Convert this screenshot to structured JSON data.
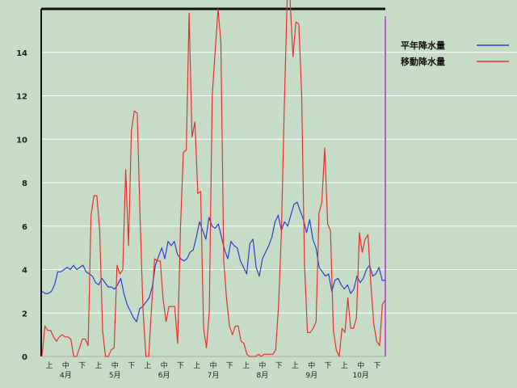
{
  "chart_data": {
    "type": "line",
    "title": "",
    "xlabel": "",
    "ylabel": "",
    "ylim": [
      0,
      16
    ],
    "yticks": [
      0,
      2,
      4,
      6,
      8,
      10,
      12,
      14
    ],
    "grid": true,
    "legend_position": "top-right",
    "x_period_labels": [
      "上",
      "中",
      "下",
      "上",
      "中",
      "下",
      "上",
      "中",
      "下",
      "上",
      "中",
      "下",
      "上",
      "中",
      "下",
      "上",
      "中",
      "下",
      "上",
      "中",
      "下"
    ],
    "x_month_labels": [
      "4月",
      "5月",
      "6月",
      "7月",
      "8月",
      "9月",
      "10月"
    ],
    "series": [
      {
        "name": "平年降水量",
        "color": "#2f3fd0",
        "y": [
          3.0,
          2.9,
          2.9,
          3.0,
          3.3,
          3.9,
          3.9,
          4.0,
          4.1,
          4.0,
          4.2,
          4.0,
          4.1,
          4.2,
          3.9,
          3.8,
          3.7,
          3.4,
          3.3,
          3.6,
          3.4,
          3.2,
          3.2,
          3.1,
          3.3,
          3.6,
          2.9,
          2.4,
          2.1,
          1.8,
          1.6,
          2.2,
          2.3,
          2.5,
          2.7,
          3.2,
          4.2,
          4.6,
          5.0,
          4.5,
          5.3,
          5.1,
          5.3,
          4.7,
          4.5,
          4.4,
          4.5,
          4.8,
          4.9,
          5.5,
          6.2,
          5.8,
          5.4,
          6.4,
          6.0,
          5.9,
          6.1,
          5.5,
          4.9,
          4.5,
          5.3,
          5.1,
          5.0,
          4.4,
          4.1,
          3.8,
          5.2,
          5.4,
          4.1,
          3.7,
          4.5,
          4.8,
          5.1,
          5.5,
          6.2,
          6.5,
          5.8,
          6.2,
          6.0,
          6.5,
          7.0,
          7.1,
          6.7,
          6.3,
          5.7,
          6.3,
          5.4,
          5.0,
          4.1,
          3.9,
          3.7,
          3.8,
          3.0,
          3.5,
          3.6,
          3.3,
          3.1,
          3.3,
          2.9,
          3.1,
          3.7,
          3.4,
          3.6,
          4.0,
          4.2,
          3.7,
          3.8,
          4.1,
          3.5,
          3.5
        ]
      },
      {
        "name": "移動降水量",
        "color": "#e83030",
        "y": [
          0.0,
          1.4,
          1.2,
          1.2,
          0.9,
          0.7,
          0.9,
          1.0,
          0.9,
          0.9,
          0.8,
          0.0,
          0.0,
          0.4,
          0.8,
          0.8,
          0.5,
          6.5,
          7.4,
          7.4,
          5.8,
          1.2,
          0.0,
          0.0,
          0.3,
          0.4,
          4.2,
          3.8,
          4.0,
          8.6,
          5.1,
          10.4,
          11.3,
          11.2,
          6.4,
          2.2,
          0.0,
          0.0,
          2.3,
          4.5,
          4.4,
          4.4,
          2.6,
          1.6,
          2.3,
          2.3,
          2.3,
          0.6,
          5.9,
          9.4,
          9.5,
          15.8,
          10.1,
          10.8,
          7.5,
          7.6,
          1.3,
          0.4,
          2.1,
          12.0,
          14.0,
          16.0,
          14.5,
          4.4,
          2.6,
          1.4,
          1.0,
          1.4,
          1.4,
          0.7,
          0.6,
          0.1,
          0.0,
          0.0,
          0.0,
          0.1,
          0.0,
          0.1,
          0.1,
          0.1,
          0.1,
          0.3,
          2.4,
          5.8,
          11.6,
          16.6,
          16.4,
          13.8,
          15.4,
          15.3,
          12.1,
          4.2,
          1.1,
          1.1,
          1.3,
          1.6,
          6.6,
          7.1,
          9.6,
          6.1,
          5.8,
          1.2,
          0.3,
          0.0,
          1.3,
          1.1,
          2.7,
          1.3,
          1.3,
          1.8,
          5.7,
          4.8,
          5.4,
          5.6,
          3.3,
          1.5,
          0.7,
          0.5,
          2.4,
          2.6
        ]
      }
    ]
  }
}
